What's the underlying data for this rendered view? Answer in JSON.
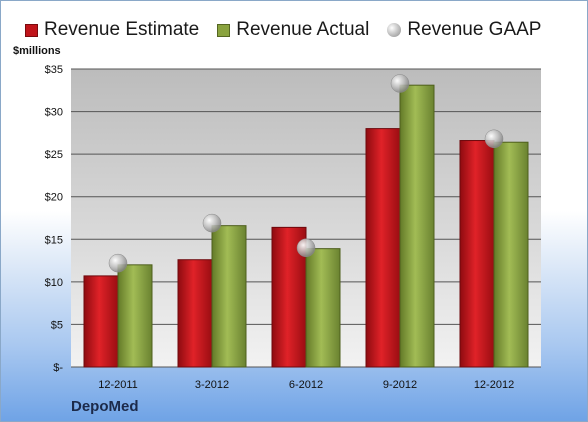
{
  "legend": {
    "estimate": "Revenue Estimate",
    "actual": "Revenue Actual",
    "gaap": "Revenue GAAP"
  },
  "unit_label": "$millions",
  "company": "DepoMed",
  "colors": {
    "estimate": "#c0141a",
    "actual": "#8aa33e",
    "gaap": "#b0b0b0",
    "plot_bg_top": "#bdbdbd",
    "plot_bg_bottom": "#f0f0f0"
  },
  "chart_data": {
    "type": "bar",
    "categories": [
      "12-2011",
      "3-2012",
      "6-2012",
      "9-2012",
      "12-2012"
    ],
    "series": [
      {
        "name": "Revenue Estimate",
        "values": [
          10.7,
          12.6,
          16.4,
          28.0,
          26.6
        ]
      },
      {
        "name": "Revenue Actual",
        "values": [
          12.0,
          16.6,
          13.9,
          33.1,
          26.4
        ]
      },
      {
        "name": "Revenue GAAP",
        "values": [
          12.2,
          16.9,
          14.0,
          33.3,
          26.8
        ],
        "marker": "circle"
      }
    ],
    "ylabel": "$millions",
    "ylim": [
      0,
      35
    ],
    "yticks": [
      0,
      5,
      10,
      15,
      20,
      25,
      30,
      35
    ],
    "ytick_labels": [
      "$-",
      "$5",
      "$10",
      "$15",
      "$20",
      "$25",
      "$30",
      "$35"
    ],
    "grid": true,
    "legend_position": "top"
  }
}
